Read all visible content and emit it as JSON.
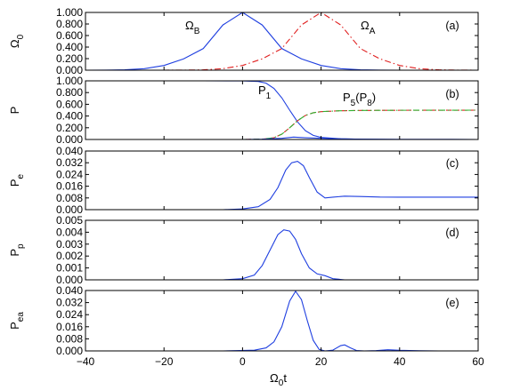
{
  "chart_data": {
    "type": "line",
    "x_axis": {
      "label": "Ω",
      "label_sub": "0",
      "label_tail": "t",
      "xlim": [
        -40,
        60
      ],
      "ticks": [
        -40,
        -20,
        0,
        20,
        40,
        60
      ],
      "tick_labels": [
        "−40",
        "−20",
        "0",
        "20",
        "40",
        "60"
      ]
    },
    "panels": [
      {
        "tag": "(a)",
        "ylabel": "Ω",
        "ylabel_sub": "0",
        "ylim": [
          0,
          1.0
        ],
        "ticks": [
          0,
          0.2,
          0.4,
          0.6,
          0.8,
          1.0
        ],
        "tick_labels": [
          "0.000",
          "0.200",
          "0.400",
          "0.600",
          "0.800",
          "1.000"
        ],
        "annotations": [
          {
            "text": "Ω",
            "sub": "B"
          },
          {
            "text": "Ω",
            "sub": "A"
          }
        ],
        "series": [
          {
            "name": "Ω_B",
            "color": "#1f3fe0",
            "style": "solid",
            "points": [
              [
                -40,
                0.0
              ],
              [
                -35,
                0.001
              ],
              [
                -30,
                0.006
              ],
              [
                -25,
                0.026
              ],
              [
                -20,
                0.082
              ],
              [
                -15,
                0.196
              ],
              [
                -10,
                0.375
              ],
              [
                -5,
                0.783
              ],
              [
                0,
                1.0
              ],
              [
                5,
                0.783
              ],
              [
                10,
                0.375
              ],
              [
                15,
                0.196
              ],
              [
                20,
                0.082
              ],
              [
                25,
                0.026
              ],
              [
                30,
                0.006
              ],
              [
                35,
                0.001
              ],
              [
                40,
                0.0
              ],
              [
                60,
                0.0
              ]
            ]
          },
          {
            "name": "Ω_A",
            "color": "#e02020",
            "style": "dashdot",
            "points": [
              [
                -40,
                0.0
              ],
              [
                -20,
                0.0
              ],
              [
                -15,
                0.001
              ],
              [
                -10,
                0.006
              ],
              [
                -5,
                0.026
              ],
              [
                0,
                0.082
              ],
              [
                5,
                0.196
              ],
              [
                10,
                0.375
              ],
              [
                15,
                0.783
              ],
              [
                20,
                1.0
              ],
              [
                25,
                0.783
              ],
              [
                30,
                0.375
              ],
              [
                35,
                0.196
              ],
              [
                40,
                0.082
              ],
              [
                45,
                0.026
              ],
              [
                50,
                0.006
              ],
              [
                55,
                0.001
              ],
              [
                60,
                0.0
              ]
            ]
          }
        ]
      },
      {
        "tag": "(b)",
        "ylabel": "P",
        "ylabel_sub": "",
        "ylim": [
          0,
          1.0
        ],
        "ticks": [
          0,
          0.2,
          0.4,
          0.6,
          0.8,
          1.0
        ],
        "tick_labels": [
          "0.000",
          "0.200",
          "0.400",
          "0.600",
          "0.800",
          "1.000"
        ],
        "annotations": [
          {
            "text": "P",
            "sub": "1"
          },
          {
            "text": "P",
            "sub": "5",
            "tail": "(P",
            "tail_sub": "8",
            "tail_end": ")"
          }
        ],
        "series": [
          {
            "name": "P_1",
            "color": "#1f3fe0",
            "style": "solid",
            "points": [
              [
                -40,
                1.0
              ],
              [
                -10,
                1.0
              ],
              [
                0,
                0.998
              ],
              [
                4,
                0.99
              ],
              [
                6,
                0.96
              ],
              [
                8,
                0.87
              ],
              [
                10,
                0.71
              ],
              [
                12,
                0.5
              ],
              [
                14,
                0.3
              ],
              [
                16,
                0.15
              ],
              [
                18,
                0.07
              ],
              [
                20,
                0.035
              ],
              [
                25,
                0.012
              ],
              [
                30,
                0.005
              ],
              [
                40,
                0.001
              ],
              [
                60,
                0.0
              ]
            ]
          },
          {
            "name": "P_5",
            "color": "#e02020",
            "style": "dashed",
            "points": [
              [
                -40,
                0.0
              ],
              [
                0,
                0.0
              ],
              [
                5,
                0.005
              ],
              [
                8,
                0.03
              ],
              [
                10,
                0.09
              ],
              [
                12,
                0.2
              ],
              [
                14,
                0.32
              ],
              [
                16,
                0.41
              ],
              [
                18,
                0.455
              ],
              [
                20,
                0.475
              ],
              [
                25,
                0.49
              ],
              [
                30,
                0.495
              ],
              [
                40,
                0.498
              ],
              [
                60,
                0.5
              ]
            ]
          },
          {
            "name": "P_8",
            "color": "#30b030",
            "style": "dashdot",
            "points": [
              [
                -40,
                0.0
              ],
              [
                0,
                0.0
              ],
              [
                5,
                0.005
              ],
              [
                8,
                0.03
              ],
              [
                10,
                0.09
              ],
              [
                12,
                0.2
              ],
              [
                14,
                0.32
              ],
              [
                16,
                0.41
              ],
              [
                18,
                0.455
              ],
              [
                20,
                0.475
              ],
              [
                25,
                0.49
              ],
              [
                30,
                0.495
              ],
              [
                40,
                0.498
              ],
              [
                60,
                0.5
              ]
            ]
          },
          {
            "name": "P_small",
            "color": "#1f3fe0",
            "style": "solid",
            "points": [
              [
                -40,
                0.0
              ],
              [
                0,
                0.0
              ],
              [
                5,
                0.005
              ],
              [
                10,
                0.02
              ],
              [
                13,
                0.04
              ],
              [
                16,
                0.03
              ],
              [
                20,
                0.02
              ],
              [
                25,
                0.01
              ],
              [
                30,
                0.005
              ],
              [
                40,
                0.002
              ],
              [
                60,
                0.0
              ]
            ]
          }
        ]
      },
      {
        "tag": "(c)",
        "ylabel": "P",
        "ylabel_sub": "e",
        "ylim": [
          0,
          0.04
        ],
        "ticks": [
          0,
          0.008,
          0.016,
          0.024,
          0.032,
          0.04
        ],
        "tick_labels": [
          "0.000",
          "0.008",
          "0.016",
          "0.024",
          "0.032",
          "0.040"
        ],
        "annotations": [],
        "series": [
          {
            "name": "P_e",
            "color": "#1f3fe0",
            "style": "solid",
            "points": [
              [
                -40,
                0.0
              ],
              [
                -5,
                0.0
              ],
              [
                0,
                0.0005
              ],
              [
                4,
                0.002
              ],
              [
                7,
                0.007
              ],
              [
                9,
                0.015
              ],
              [
                11,
                0.027
              ],
              [
                12.5,
                0.032
              ],
              [
                14,
                0.033
              ],
              [
                15.5,
                0.03
              ],
              [
                17,
                0.022
              ],
              [
                19,
                0.012
              ],
              [
                21,
                0.008
              ],
              [
                23,
                0.0085
              ],
              [
                26,
                0.0092
              ],
              [
                30,
                0.009
              ],
              [
                35,
                0.0086
              ],
              [
                40,
                0.0085
              ],
              [
                50,
                0.0085
              ],
              [
                60,
                0.0085
              ]
            ]
          }
        ]
      },
      {
        "tag": "(d)",
        "ylabel": "P",
        "ylabel_sub": "p",
        "ylim": [
          0,
          0.005
        ],
        "ticks": [
          0,
          0.001,
          0.002,
          0.003,
          0.004,
          0.005
        ],
        "tick_labels": [
          "0.000",
          "0.001",
          "0.002",
          "0.003",
          "0.004",
          "0.005"
        ],
        "annotations": [],
        "series": [
          {
            "name": "P_p",
            "color": "#1f3fe0",
            "style": "solid",
            "points": [
              [
                -40,
                0.0
              ],
              [
                -5,
                0.0
              ],
              [
                0,
                0.0001
              ],
              [
                3,
                0.0004
              ],
              [
                5,
                0.0012
              ],
              [
                7,
                0.0025
              ],
              [
                9,
                0.0038
              ],
              [
                10.5,
                0.0042
              ],
              [
                12,
                0.0041
              ],
              [
                13.5,
                0.0034
              ],
              [
                15,
                0.0022
              ],
              [
                17,
                0.001
              ],
              [
                19,
                0.0005
              ],
              [
                21,
                0.00035
              ],
              [
                23,
                0.0001
              ],
              [
                26,
                0.0
              ],
              [
                60,
                0.0
              ]
            ]
          }
        ]
      },
      {
        "tag": "(e)",
        "ylabel": "P",
        "ylabel_sub": "ea",
        "ylim": [
          0,
          0.04
        ],
        "ticks": [
          0,
          0.008,
          0.016,
          0.024,
          0.032,
          0.04
        ],
        "tick_labels": [
          "0.000",
          "0.008",
          "0.016",
          "0.024",
          "0.032",
          "0.040"
        ],
        "annotations": [],
        "series": [
          {
            "name": "P_ea",
            "color": "#1f3fe0",
            "style": "solid",
            "points": [
              [
                -40,
                0.0
              ],
              [
                -5,
                0.0
              ],
              [
                3,
                0.0005
              ],
              [
                6,
                0.002
              ],
              [
                8,
                0.006
              ],
              [
                10,
                0.016
              ],
              [
                12,
                0.033
              ],
              [
                13.5,
                0.0395
              ],
              [
                15,
                0.034
              ],
              [
                16.5,
                0.02
              ],
              [
                18,
                0.007
              ],
              [
                19.5,
                0.001
              ],
              [
                21,
                0.0
              ],
              [
                23,
                0.0005
              ],
              [
                25,
                0.0035
              ],
              [
                26,
                0.004
              ],
              [
                27.5,
                0.002
              ],
              [
                29,
                0.0003
              ],
              [
                31,
                0.0
              ],
              [
                34,
                0.0002
              ],
              [
                37,
                0.0008
              ],
              [
                40,
                0.0004
              ],
              [
                45,
                0.0001
              ],
              [
                50,
                0.0
              ],
              [
                60,
                0.0
              ]
            ]
          }
        ]
      }
    ]
  }
}
